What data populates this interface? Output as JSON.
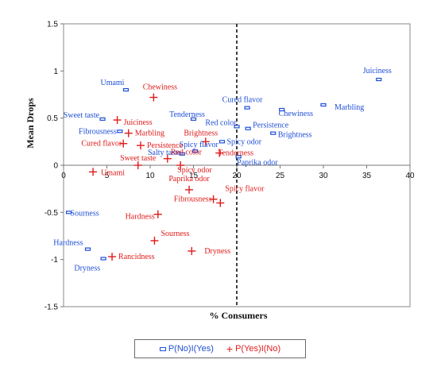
{
  "chart_data": {
    "type": "scatter",
    "title": "",
    "xlabel": "% Consumers",
    "ylabel": "Mean Drops",
    "xlim": [
      0,
      40
    ],
    "ylim": [
      -1.5,
      1.5
    ],
    "xticks": [
      "0",
      "5",
      "10",
      "15",
      "20",
      "25",
      "30",
      "35",
      "40"
    ],
    "yticks": [
      "1.5",
      "1",
      "0.5",
      "0",
      "-0.5",
      "-1",
      "-1.5"
    ],
    "reference_line": {
      "x": 20,
      "style": "dashed"
    },
    "legend_position": "bottom",
    "series": [
      {
        "name": "P(No)I(Yes)",
        "marker": "open-square",
        "color": "#1f4fd6",
        "points": [
          {
            "label": "Juiciness",
            "x": 36.4,
            "y": 0.91
          },
          {
            "label": "Umami",
            "x": 7.2,
            "y": 0.8
          },
          {
            "label": "Marbling",
            "x": 30.0,
            "y": 0.64
          },
          {
            "label": "Cured flavor",
            "x": 21.2,
            "y": 0.61
          },
          {
            "label": "Chewiness",
            "x": 25.2,
            "y": 0.59
          },
          {
            "label": "Sweet taste",
            "x": 4.5,
            "y": 0.49
          },
          {
            "label": "Tenderness",
            "x": 15.0,
            "y": 0.49
          },
          {
            "label": "Red color",
            "x": 20.0,
            "y": 0.41
          },
          {
            "label": "Persistence",
            "x": 21.3,
            "y": 0.39
          },
          {
            "label": "Fibrousness",
            "x": 6.5,
            "y": 0.36
          },
          {
            "label": "Brightness",
            "x": 24.2,
            "y": 0.34
          },
          {
            "label": "Spicy odor",
            "x": 18.3,
            "y": 0.25
          },
          {
            "label": "Spicy flavor",
            "x": 15.2,
            "y": 0.15
          },
          {
            "label": "Salty taste",
            "x": 13.7,
            "y": 0.12
          },
          {
            "label": "Paprika odor",
            "x": 20.2,
            "y": 0.09
          },
          {
            "label": "Sourness",
            "x": 0.6,
            "y": -0.5
          },
          {
            "label": "Hardness",
            "x": 2.8,
            "y": -0.89
          },
          {
            "label": "Dryness",
            "x": 4.6,
            "y": -0.99
          }
        ]
      },
      {
        "name": "P(Yes)I(No)",
        "marker": "plus",
        "color": "#e01b1b",
        "points": [
          {
            "label": "Chewiness",
            "x": 10.4,
            "y": 0.72
          },
          {
            "label": "Juiciness",
            "x": 6.2,
            "y": 0.48
          },
          {
            "label": "Marbling",
            "x": 7.5,
            "y": 0.34
          },
          {
            "label": "Brightness",
            "x": 16.4,
            "y": 0.25
          },
          {
            "label": "Cured flavor",
            "x": 6.9,
            "y": 0.23
          },
          {
            "label": "Persistence",
            "x": 8.9,
            "y": 0.21
          },
          {
            "label": "Tenderness",
            "x": 18.0,
            "y": 0.13
          },
          {
            "label": "Red color",
            "x": 12.0,
            "y": 0.07
          },
          {
            "label": "Sweet taste",
            "x": 8.6,
            "y": 0.0
          },
          {
            "label": "Spicy odor",
            "x": 13.5,
            "y": 0.0
          },
          {
            "label": "Umami",
            "x": 3.4,
            "y": -0.07
          },
          {
            "label": "Paprika odor",
            "x": 14.5,
            "y": -0.26
          },
          {
            "label": "Fibrousness",
            "x": 17.3,
            "y": -0.36
          },
          {
            "label": "Spicy flavor",
            "x": 18.1,
            "y": -0.4
          },
          {
            "label": "Hardness",
            "x": 10.9,
            "y": -0.52
          },
          {
            "label": "Sourness",
            "x": 10.5,
            "y": -0.8
          },
          {
            "label": "Dryness",
            "x": 14.8,
            "y": -0.91
          },
          {
            "label": "Rancidness",
            "x": 5.6,
            "y": -0.97
          }
        ]
      }
    ]
  }
}
